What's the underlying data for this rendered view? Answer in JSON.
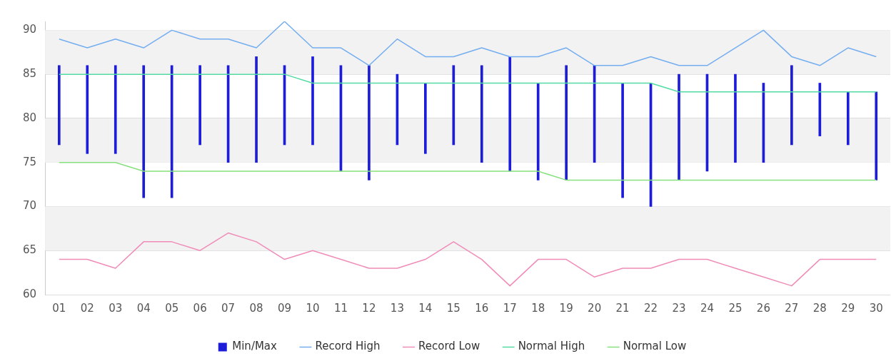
{
  "chart_data": {
    "type": "line",
    "categories": [
      "01",
      "02",
      "03",
      "04",
      "05",
      "06",
      "07",
      "08",
      "09",
      "10",
      "11",
      "12",
      "13",
      "14",
      "15",
      "16",
      "17",
      "18",
      "19",
      "20",
      "21",
      "22",
      "23",
      "24",
      "25",
      "26",
      "27",
      "28",
      "29",
      "30"
    ],
    "ylim": [
      60,
      91
    ],
    "yticks": [
      60,
      65,
      70,
      75,
      80,
      85,
      90
    ],
    "grid": "y",
    "legend": "bottom",
    "marker": "none",
    "line_style": "solid",
    "series": [
      {
        "name": "Min/Max",
        "type": "bar",
        "color": "#1c1cd9",
        "base": [
          77,
          76,
          76,
          71,
          71,
          77,
          75,
          75,
          77,
          77,
          74,
          73,
          77,
          76,
          77,
          75,
          74,
          73,
          73,
          75,
          71,
          70,
          73,
          74,
          75,
          75,
          77,
          78,
          77,
          73
        ],
        "values": [
          9,
          10,
          10,
          15,
          15,
          9,
          11,
          12,
          9,
          10,
          12,
          13,
          8,
          8,
          9,
          11,
          13,
          11,
          13,
          11,
          13,
          14,
          12,
          11,
          10,
          9,
          9,
          6,
          6,
          10
        ]
      },
      {
        "name": "Record High",
        "color": "#74aef0",
        "values": [
          89,
          88,
          89,
          88,
          90,
          89,
          89,
          88,
          91,
          88,
          88,
          86,
          89,
          87,
          87,
          88,
          87,
          87,
          88,
          86,
          86,
          87,
          86,
          86,
          88,
          90,
          87,
          86,
          88,
          87
        ]
      },
      {
        "name": "Record Low",
        "color": "#f08cb8",
        "values": [
          64,
          64,
          63,
          66,
          66,
          65,
          67,
          66,
          64,
          65,
          64,
          63,
          63,
          64,
          66,
          64,
          61,
          64,
          64,
          62,
          63,
          63,
          64,
          64,
          63,
          62,
          61,
          64,
          64,
          64
        ]
      },
      {
        "name": "Normal High",
        "color": "#52dca4",
        "values": [
          85,
          85,
          85,
          85,
          85,
          85,
          85,
          85,
          85,
          84,
          84,
          84,
          84,
          84,
          84,
          84,
          84,
          84,
          84,
          84,
          84,
          84,
          83,
          83,
          83,
          83,
          83,
          83,
          83,
          83
        ]
      },
      {
        "name": "Normal Low",
        "color": "#86e07e",
        "values": [
          75,
          75,
          75,
          74,
          74,
          74,
          74,
          74,
          74,
          74,
          74,
          74,
          74,
          74,
          74,
          74,
          74,
          74,
          73,
          73,
          73,
          73,
          73,
          73,
          73,
          73,
          73,
          73,
          73,
          73
        ]
      }
    ]
  }
}
